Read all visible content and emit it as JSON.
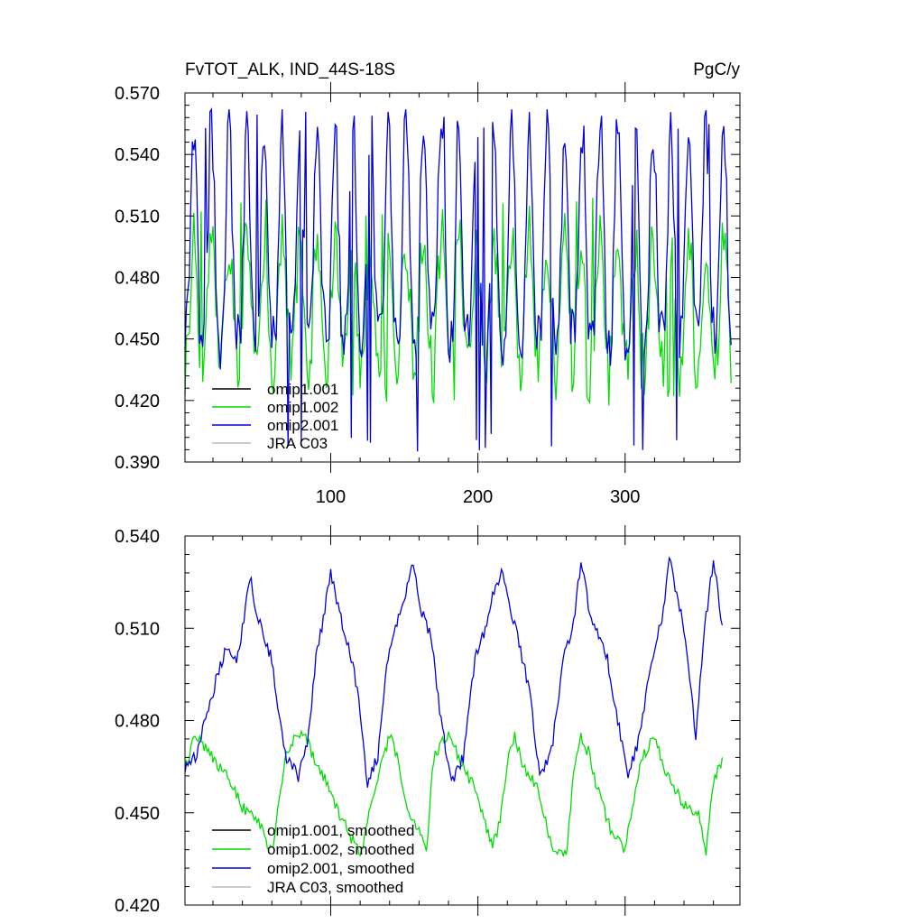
{
  "header": {
    "title_left": "FvTOT_ALK, IND_44S-18S",
    "title_right": "PgC/y"
  },
  "colors": {
    "omip1_001": "#000000",
    "omip1_002": "#00dd00",
    "omip2_001": "#0000dd",
    "jra_c03": "#bbbbbb"
  },
  "chart_data": [
    {
      "type": "line",
      "title": "FvTOT_ALK, IND_44S-18S",
      "units": "PgC/y",
      "xlim": [
        1,
        378
      ],
      "ylim": [
        0.39,
        0.57
      ],
      "xticks": [
        100,
        200,
        300
      ],
      "xtick_labels": [
        "100",
        "200",
        "300"
      ],
      "yticks": [
        0.39,
        0.42,
        0.45,
        0.48,
        0.51,
        0.54,
        0.57
      ],
      "ytick_labels": [
        "0.390",
        "0.420",
        "0.450",
        "0.480",
        "0.510",
        "0.540",
        "0.570"
      ],
      "legend": [
        "omip1.001",
        "omip1.002",
        "omip2.001",
        "JRA C03"
      ],
      "legend_position": "bottom-left",
      "series": [
        {
          "name": "omip1.002",
          "color": "#00dd00",
          "x_start": 1,
          "period": 12,
          "n_points": 372,
          "cycle_low": 0.435,
          "cycle_high": 0.498,
          "min": 0.417,
          "max": 0.52
        },
        {
          "name": "omip2.001",
          "color": "#0000dd",
          "x_start": 1,
          "period": 12,
          "n_points": 372,
          "cycle_low": 0.45,
          "cycle_high": 0.555,
          "min": 0.395,
          "max": 0.562
        }
      ]
    },
    {
      "type": "line",
      "xlim": [
        1,
        378
      ],
      "ylim": [
        0.42,
        0.54
      ],
      "xticks": [
        100,
        200,
        300
      ],
      "yticks": [
        0.42,
        0.45,
        0.48,
        0.51,
        0.54
      ],
      "ytick_labels": [
        "0.420",
        "0.450",
        "0.480",
        "0.510",
        "0.540"
      ],
      "legend": [
        "omip1.001, smoothed",
        "omip1.002, smoothed",
        "omip2.001, smoothed",
        "JRA C03, smoothed"
      ],
      "legend_position": "bottom-left",
      "series": [
        {
          "name": "omip1.002, smoothed",
          "color": "#00dd00",
          "x": [
            1,
            8,
            20,
            30,
            40,
            50,
            60,
            70,
            80,
            85,
            90,
            95,
            100,
            105,
            110,
            120,
            130,
            140,
            145,
            150,
            155,
            160,
            165,
            170,
            180,
            190,
            200,
            205,
            210,
            215,
            220,
            225,
            230,
            240,
            250,
            260,
            265,
            270,
            275,
            280,
            285,
            290,
            300,
            310,
            320,
            325,
            330,
            340,
            350,
            355,
            360,
            366
          ],
          "y": [
            0.465,
            0.475,
            0.468,
            0.462,
            0.452,
            0.448,
            0.437,
            0.47,
            0.477,
            0.472,
            0.466,
            0.462,
            0.456,
            0.45,
            0.446,
            0.436,
            0.458,
            0.475,
            0.468,
            0.456,
            0.448,
            0.445,
            0.438,
            0.468,
            0.476,
            0.465,
            0.456,
            0.446,
            0.44,
            0.447,
            0.467,
            0.476,
            0.466,
            0.458,
            0.44,
            0.436,
            0.464,
            0.474,
            0.47,
            0.46,
            0.452,
            0.445,
            0.438,
            0.466,
            0.475,
            0.466,
            0.462,
            0.452,
            0.45,
            0.437,
            0.46,
            0.468
          ]
        },
        {
          "name": "omip2.001, smoothed",
          "color": "#0000dd",
          "x": [
            1,
            8,
            15,
            22,
            30,
            36,
            40,
            45,
            50,
            55,
            60,
            65,
            70,
            78,
            85,
            90,
            95,
            100,
            106,
            112,
            118,
            125,
            132,
            138,
            145,
            150,
            156,
            162,
            168,
            175,
            182,
            190,
            198,
            205,
            210,
            216,
            222,
            228,
            235,
            242,
            250,
            258,
            265,
            270,
            276,
            282,
            288,
            295,
            302,
            310,
            318,
            325,
            330,
            336,
            342,
            348,
            354,
            360,
            366
          ],
          "y": [
            0.465,
            0.468,
            0.48,
            0.493,
            0.505,
            0.5,
            0.51,
            0.527,
            0.515,
            0.507,
            0.5,
            0.48,
            0.468,
            0.462,
            0.475,
            0.5,
            0.513,
            0.528,
            0.515,
            0.505,
            0.49,
            0.46,
            0.468,
            0.498,
            0.512,
            0.52,
            0.531,
            0.515,
            0.508,
            0.48,
            0.46,
            0.468,
            0.5,
            0.51,
            0.52,
            0.528,
            0.517,
            0.505,
            0.49,
            0.462,
            0.47,
            0.5,
            0.512,
            0.532,
            0.515,
            0.507,
            0.5,
            0.48,
            0.462,
            0.475,
            0.5,
            0.513,
            0.532,
            0.52,
            0.503,
            0.475,
            0.51,
            0.532,
            0.511
          ]
        }
      ]
    }
  ]
}
